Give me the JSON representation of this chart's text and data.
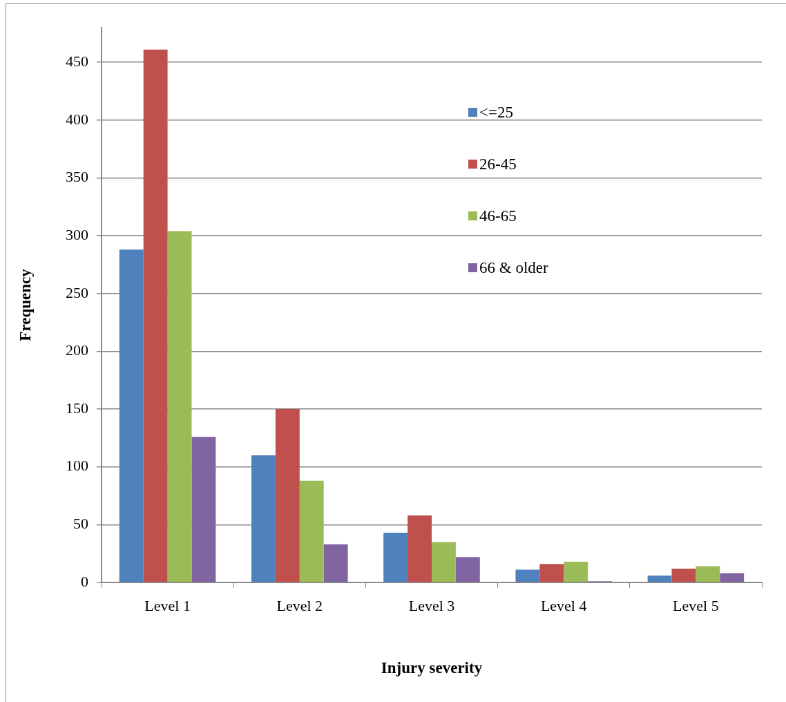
{
  "chart_data": {
    "type": "bar",
    "xlabel": "Injury severity",
    "ylabel": "Frequency",
    "categories": [
      "Level 1",
      "Level 2",
      "Level 3",
      "Level 4",
      "Level 5"
    ],
    "series": [
      {
        "name": "<=25",
        "color": "#4f81bd",
        "values": [
          288,
          110,
          43,
          11,
          6
        ]
      },
      {
        "name": "26-45",
        "color": "#c0504d",
        "values": [
          461,
          150,
          58,
          16,
          12
        ]
      },
      {
        "name": "46-65",
        "color": "#9bbb59",
        "values": [
          304,
          88,
          35,
          18,
          14
        ]
      },
      {
        "name": "66 & older",
        "color": "#8064a2",
        "values": [
          126,
          33,
          22,
          1,
          8
        ]
      }
    ],
    "ylim": [
      0,
      480
    ],
    "yticks": [
      0,
      50,
      100,
      150,
      200,
      250,
      300,
      350,
      400,
      450
    ],
    "grid": "y",
    "legend": "top right"
  }
}
